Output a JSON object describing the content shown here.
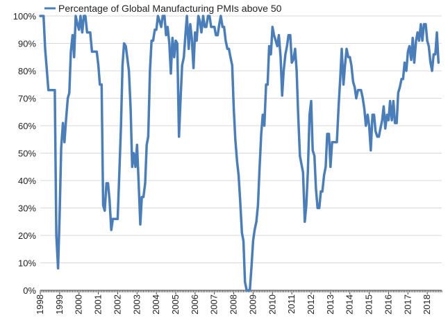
{
  "chart_data": {
    "type": "line",
    "title": "",
    "xlabel": "",
    "ylabel": "",
    "legend_position": "top-left",
    "grid": true,
    "xlim": [
      1998.0,
      2018.75
    ],
    "ylim": [
      0,
      100
    ],
    "y_ticks": [
      "0%",
      "10%",
      "20%",
      "30%",
      "40%",
      "50%",
      "60%",
      "70%",
      "80%",
      "90%",
      "100%"
    ],
    "x_ticks": [
      "1998",
      "1999",
      "2000",
      "2001",
      "2002",
      "2003",
      "2004",
      "2005",
      "2006",
      "2007",
      "2008",
      "2009",
      "2010",
      "2011",
      "2012",
      "2013",
      "2014",
      "2015",
      "2016",
      "2017",
      "2018"
    ],
    "series": [
      {
        "name": "Percentage of Global Manufacturing PMIs above 50",
        "color": "#4a7ebb",
        "points": [
          [
            1998.0,
            100
          ],
          [
            1998.17,
            100
          ],
          [
            1998.25,
            88
          ],
          [
            1998.42,
            73
          ],
          [
            1998.58,
            73
          ],
          [
            1998.75,
            73
          ],
          [
            1998.83,
            20
          ],
          [
            1998.92,
            8
          ],
          [
            1999.0,
            28
          ],
          [
            1999.08,
            52
          ],
          [
            1999.17,
            61
          ],
          [
            1999.25,
            54
          ],
          [
            1999.33,
            62
          ],
          [
            1999.42,
            70
          ],
          [
            1999.5,
            72
          ],
          [
            1999.58,
            87
          ],
          [
            1999.67,
            93
          ],
          [
            1999.75,
            85
          ],
          [
            1999.83,
            100
          ],
          [
            1999.92,
            97
          ],
          [
            2000.0,
            95
          ],
          [
            2000.08,
            100
          ],
          [
            2000.17,
            94
          ],
          [
            2000.25,
            100
          ],
          [
            2000.33,
            100
          ],
          [
            2000.42,
            94
          ],
          [
            2000.58,
            94
          ],
          [
            2000.67,
            87
          ],
          [
            2000.92,
            87
          ],
          [
            2001.0,
            82
          ],
          [
            2001.08,
            75
          ],
          [
            2001.17,
            75
          ],
          [
            2001.25,
            31
          ],
          [
            2001.33,
            29
          ],
          [
            2001.42,
            39
          ],
          [
            2001.5,
            39
          ],
          [
            2001.58,
            33
          ],
          [
            2001.67,
            22
          ],
          [
            2001.75,
            26
          ],
          [
            2002.0,
            26
          ],
          [
            2002.08,
            42
          ],
          [
            2002.17,
            60
          ],
          [
            2002.25,
            82
          ],
          [
            2002.33,
            90
          ],
          [
            2002.42,
            89
          ],
          [
            2002.58,
            80
          ],
          [
            2002.67,
            66
          ],
          [
            2002.75,
            45
          ],
          [
            2002.83,
            50
          ],
          [
            2002.92,
            45
          ],
          [
            2003.0,
            53
          ],
          [
            2003.08,
            40
          ],
          [
            2003.17,
            24
          ],
          [
            2003.25,
            34
          ],
          [
            2003.33,
            34
          ],
          [
            2003.42,
            39
          ],
          [
            2003.5,
            53
          ],
          [
            2003.58,
            56
          ],
          [
            2003.67,
            80
          ],
          [
            2003.75,
            91
          ],
          [
            2003.83,
            91
          ],
          [
            2003.92,
            95
          ],
          [
            2004.0,
            95
          ],
          [
            2004.08,
            100
          ],
          [
            2004.17,
            98
          ],
          [
            2004.25,
            96
          ],
          [
            2004.33,
            100
          ],
          [
            2004.42,
            100
          ],
          [
            2004.5,
            93
          ],
          [
            2004.58,
            96
          ],
          [
            2004.67,
            90
          ],
          [
            2004.75,
            79
          ],
          [
            2004.83,
            92
          ],
          [
            2004.92,
            85
          ],
          [
            2005.0,
            91
          ],
          [
            2005.08,
            90
          ],
          [
            2005.17,
            56
          ],
          [
            2005.25,
            70
          ],
          [
            2005.33,
            82
          ],
          [
            2005.42,
            85
          ],
          [
            2005.5,
            93
          ],
          [
            2005.58,
            100
          ],
          [
            2005.67,
            88
          ],
          [
            2005.75,
            97
          ],
          [
            2005.83,
            92
          ],
          [
            2005.92,
            81
          ],
          [
            2006.0,
            94
          ],
          [
            2006.08,
            91
          ],
          [
            2006.17,
            100
          ],
          [
            2006.25,
            98
          ],
          [
            2006.33,
            94
          ],
          [
            2006.42,
            100
          ],
          [
            2006.5,
            96
          ],
          [
            2006.58,
            96
          ],
          [
            2006.67,
            100
          ],
          [
            2006.75,
            100
          ],
          [
            2006.83,
            96
          ],
          [
            2006.92,
            96
          ],
          [
            2007.0,
            96
          ],
          [
            2007.08,
            93
          ],
          [
            2007.17,
            93
          ],
          [
            2007.25,
            97
          ],
          [
            2007.33,
            100
          ],
          [
            2007.42,
            96
          ],
          [
            2007.5,
            96
          ],
          [
            2007.58,
            91
          ],
          [
            2007.67,
            88
          ],
          [
            2007.75,
            88
          ],
          [
            2007.83,
            85
          ],
          [
            2007.92,
            82
          ],
          [
            2008.0,
            66
          ],
          [
            2008.08,
            55
          ],
          [
            2008.17,
            47
          ],
          [
            2008.25,
            42
          ],
          [
            2008.33,
            33
          ],
          [
            2008.42,
            21
          ],
          [
            2008.5,
            18
          ],
          [
            2008.58,
            3
          ],
          [
            2008.67,
            0
          ],
          [
            2008.83,
            0
          ],
          [
            2008.92,
            9
          ],
          [
            2009.0,
            18
          ],
          [
            2009.08,
            22
          ],
          [
            2009.17,
            25
          ],
          [
            2009.25,
            31
          ],
          [
            2009.33,
            44
          ],
          [
            2009.42,
            57
          ],
          [
            2009.5,
            64
          ],
          [
            2009.58,
            60
          ],
          [
            2009.67,
            75
          ],
          [
            2009.75,
            75
          ],
          [
            2009.83,
            89
          ],
          [
            2009.92,
            86
          ],
          [
            2010.0,
            96
          ],
          [
            2010.08,
            93
          ],
          [
            2010.17,
            91
          ],
          [
            2010.25,
            89
          ],
          [
            2010.33,
            93
          ],
          [
            2010.42,
            85
          ],
          [
            2010.5,
            71
          ],
          [
            2010.58,
            80
          ],
          [
            2010.67,
            86
          ],
          [
            2010.75,
            89
          ],
          [
            2010.83,
            93
          ],
          [
            2010.92,
            93
          ],
          [
            2011.0,
            83
          ],
          [
            2011.08,
            84
          ],
          [
            2011.17,
            88
          ],
          [
            2011.25,
            80
          ],
          [
            2011.33,
            64
          ],
          [
            2011.42,
            49
          ],
          [
            2011.5,
            46
          ],
          [
            2011.58,
            43
          ],
          [
            2011.67,
            25
          ],
          [
            2011.75,
            31
          ],
          [
            2011.83,
            43
          ],
          [
            2011.92,
            64
          ],
          [
            2012.0,
            69
          ],
          [
            2012.08,
            51
          ],
          [
            2012.17,
            49
          ],
          [
            2012.25,
            37
          ],
          [
            2012.33,
            30
          ],
          [
            2012.42,
            30
          ],
          [
            2012.5,
            36
          ],
          [
            2012.58,
            36
          ],
          [
            2012.67,
            42
          ],
          [
            2012.75,
            45
          ],
          [
            2012.83,
            57
          ],
          [
            2012.92,
            57
          ],
          [
            2013.0,
            45
          ],
          [
            2013.08,
            54
          ],
          [
            2013.17,
            54
          ],
          [
            2013.25,
            54
          ],
          [
            2013.33,
            54
          ],
          [
            2013.42,
            67
          ],
          [
            2013.5,
            77
          ],
          [
            2013.58,
            88
          ],
          [
            2013.67,
            75
          ],
          [
            2013.75,
            82
          ],
          [
            2013.83,
            88
          ],
          [
            2013.92,
            85
          ],
          [
            2014.0,
            85
          ],
          [
            2014.08,
            82
          ],
          [
            2014.17,
            76
          ],
          [
            2014.25,
            74
          ],
          [
            2014.33,
            70
          ],
          [
            2014.42,
            73
          ],
          [
            2014.58,
            73
          ],
          [
            2014.67,
            70
          ],
          [
            2014.75,
            66
          ],
          [
            2014.83,
            60
          ],
          [
            2014.92,
            64
          ],
          [
            2015.0,
            60
          ],
          [
            2015.08,
            51
          ],
          [
            2015.17,
            64
          ],
          [
            2015.25,
            64
          ],
          [
            2015.33,
            58
          ],
          [
            2015.42,
            56
          ],
          [
            2015.5,
            56
          ],
          [
            2015.58,
            59
          ],
          [
            2015.67,
            62
          ],
          [
            2015.75,
            67
          ],
          [
            2015.83,
            59
          ],
          [
            2015.92,
            64
          ],
          [
            2016.0,
            62
          ],
          [
            2016.08,
            69
          ],
          [
            2016.17,
            62
          ],
          [
            2016.25,
            69
          ],
          [
            2016.33,
            61
          ],
          [
            2016.42,
            61
          ],
          [
            2016.5,
            72
          ],
          [
            2016.58,
            74
          ],
          [
            2016.67,
            77
          ],
          [
            2016.75,
            77
          ],
          [
            2016.83,
            83
          ],
          [
            2016.92,
            80
          ],
          [
            2017.0,
            87
          ],
          [
            2017.08,
            89
          ],
          [
            2017.17,
            84
          ],
          [
            2017.25,
            92
          ],
          [
            2017.33,
            83
          ],
          [
            2017.42,
            91
          ],
          [
            2017.5,
            94
          ],
          [
            2017.58,
            91
          ],
          [
            2017.67,
            97
          ],
          [
            2017.75,
            91
          ],
          [
            2017.83,
            97
          ],
          [
            2017.92,
            97
          ],
          [
            2018.0,
            91
          ],
          [
            2018.08,
            89
          ],
          [
            2018.17,
            83
          ],
          [
            2018.25,
            80
          ],
          [
            2018.33,
            86
          ],
          [
            2018.42,
            86
          ],
          [
            2018.5,
            94
          ],
          [
            2018.58,
            83
          ]
        ]
      }
    ]
  }
}
